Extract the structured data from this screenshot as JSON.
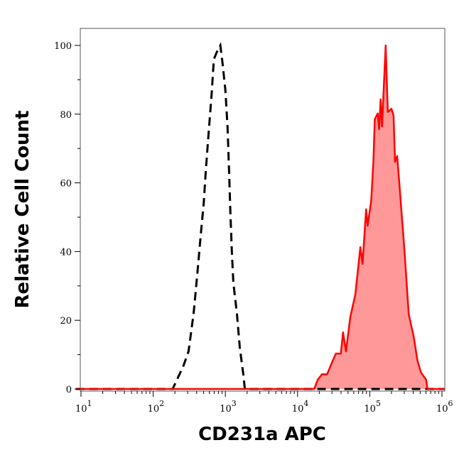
{
  "chart_data": {
    "type": "area",
    "title": "",
    "xlabel": "CD231a APC",
    "ylabel": "Relative Cell Count",
    "xscale": "log",
    "xlim": [
      8.5,
      1100000
    ],
    "ylim": [
      0,
      105
    ],
    "x_ticks": [
      {
        "base": "10",
        "exp": "1",
        "value": 10
      },
      {
        "base": "10",
        "exp": "2",
        "value": 100
      },
      {
        "base": "10",
        "exp": "3",
        "value": 1000
      },
      {
        "base": "10",
        "exp": "4",
        "value": 10000
      },
      {
        "base": "10",
        "exp": "5",
        "value": 100000
      },
      {
        "base": "10",
        "exp": "6",
        "value": 1000000
      }
    ],
    "y_ticks": [
      "0",
      "20",
      "40",
      "60",
      "80",
      "100"
    ],
    "grid": false,
    "legend": "none",
    "series": [
      {
        "style": "dashed-line",
        "color": "#000000",
        "x": [
          8.5,
          186,
          263,
          309,
          363,
          407,
          457,
          501,
          537,
          589,
          646,
          692,
          759,
          851,
          912,
          1000,
          1072,
          1122,
          1175,
          1230,
          1288,
          1445,
          1585,
          1778,
          1862,
          1100000
        ],
        "y": [
          0,
          0,
          6.8,
          11,
          22,
          33,
          45,
          54,
          64,
          75,
          86,
          96,
          98,
          100,
          95,
          87,
          76,
          64,
          51,
          40,
          31,
          22,
          12,
          4,
          0,
          0
        ]
      },
      {
        "style": "filled-area",
        "color": "#ff0000",
        "fill": "#ff9999",
        "x": [
          8.5,
          16980,
          19050,
          21880,
          25700,
          30200,
          33900,
          39800,
          42660,
          46770,
          53700,
          63100,
          74130,
          79430,
          89130,
          93330,
          104700,
          112200,
          117500,
          128800,
          134900,
          141300,
          147900,
          166000,
          177800,
          199500,
          213800,
          223900,
          239900,
          263000,
          302000,
          346700,
          407400,
          457100,
          512900,
          602600,
          631000,
          1100000
        ],
        "y": [
          0,
          0,
          2.7,
          4.3,
          4.3,
          7.9,
          10.3,
          10.3,
          16.5,
          10.9,
          20.9,
          27.5,
          41.3,
          36.4,
          52.3,
          47.5,
          54.8,
          66.1,
          78.5,
          80.2,
          75.6,
          84.3,
          76.4,
          100,
          80.6,
          81.6,
          79.5,
          66.1,
          67.8,
          57.0,
          40.3,
          21.7,
          15.1,
          8.3,
          4.8,
          2.7,
          0,
          0
        ]
      }
    ]
  }
}
